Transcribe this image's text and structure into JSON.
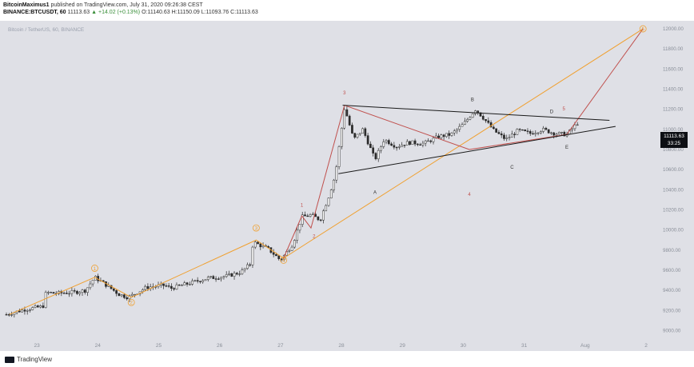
{
  "header": {
    "author": "BitcoinMaximus1",
    "published": "published on TradingView.com, July 31, 2020 09:26:38 CEST",
    "symbol": "BINANCE:BTCUSDT, 60",
    "last": "11113.63",
    "change": "▲ +14.02 (+0.13%)",
    "ohlc": "O:11140.63 H:11150.09 L:11093.76 C:11113.63",
    "watermark": "Bitcoin / TetherUS, 60, BINANCE"
  },
  "price_tag": {
    "price": "11113.63",
    "countdown": "33:25"
  },
  "footer": {
    "brand": "TradingView"
  },
  "colors": {
    "background": "#dfe0e6",
    "candle": "#2b2b2b",
    "wave_orange": "#f0a030",
    "wave_red": "#c0504d",
    "triangle": "#1a1a1a"
  },
  "chart_data": {
    "type": "candlestick",
    "x_ticks": [
      "23",
      "24",
      "25",
      "26",
      "27",
      "28",
      "29",
      "30",
      "31",
      "Aug",
      "2"
    ],
    "y_ticks": [
      9000,
      9200,
      9400,
      9600,
      9800,
      10000,
      10200,
      10400,
      10600,
      10800,
      11000,
      11200,
      11400,
      11600,
      11800,
      12000
    ],
    "y_tick_labels": [
      "9000.00",
      "9200.00",
      "9400.00",
      "9600.00",
      "9800.00",
      "10000.00",
      "10200.00",
      "10400.00",
      "10600.00",
      "10800.00",
      "11000.00",
      "11200.00",
      "11400.00",
      "11600.00",
      "11800.00",
      "12000.00"
    ],
    "ylim": [
      8940,
      12080
    ],
    "xlim": [
      0,
      10.5
    ],
    "close_path": [
      [
        0,
        9160
      ],
      [
        0.3,
        9210
      ],
      [
        0.6,
        9240
      ],
      [
        0.65,
        9380
      ],
      [
        0.8,
        9370
      ],
      [
        1.1,
        9380
      ],
      [
        1.3,
        9400
      ],
      [
        1.45,
        9530
      ],
      [
        1.6,
        9470
      ],
      [
        1.85,
        9360
      ],
      [
        2.0,
        9330
      ],
      [
        2.3,
        9430
      ],
      [
        2.6,
        9450
      ],
      [
        2.7,
        9420
      ],
      [
        3.0,
        9470
      ],
      [
        3.3,
        9520
      ],
      [
        3.6,
        9540
      ],
      [
        3.85,
        9580
      ],
      [
        4.0,
        9660
      ],
      [
        4.05,
        9880
      ],
      [
        4.3,
        9810
      ],
      [
        4.5,
        9700
      ],
      [
        4.7,
        9860
      ],
      [
        4.85,
        10130
      ],
      [
        5.0,
        10150
      ],
      [
        5.15,
        10100
      ],
      [
        5.3,
        10350
      ],
      [
        5.4,
        10550
      ],
      [
        5.55,
        11220
      ],
      [
        5.7,
        10900
      ],
      [
        5.85,
        11000
      ],
      [
        6.05,
        10700
      ],
      [
        6.2,
        10900
      ],
      [
        6.4,
        10830
      ],
      [
        6.6,
        10870
      ],
      [
        6.85,
        10860
      ],
      [
        7.1,
        10930
      ],
      [
        7.3,
        10950
      ],
      [
        7.5,
        11050
      ],
      [
        7.7,
        11200
      ],
      [
        7.85,
        11100
      ],
      [
        8.0,
        10990
      ],
      [
        8.2,
        10900
      ],
      [
        8.4,
        10990
      ],
      [
        8.6,
        10960
      ],
      [
        8.8,
        11000
      ],
      [
        9.0,
        10960
      ],
      [
        9.2,
        10950
      ],
      [
        9.4,
        11080
      ]
    ],
    "triangle": {
      "upper": [
        [
          5.52,
          11240
        ],
        [
          9.9,
          11090
        ]
      ],
      "lower": [
        [
          5.45,
          10560
        ],
        [
          10.0,
          11030
        ]
      ]
    },
    "wave_labels_orange": [
      {
        "label": "1",
        "x": 1.45,
        "y": 9620
      },
      {
        "label": "2",
        "x": 2.05,
        "y": 9280
      },
      {
        "label": "3",
        "x": 4.1,
        "y": 10020
      },
      {
        "label": "4",
        "x": 4.55,
        "y": 9700
      },
      {
        "label": "5",
        "x": 10.45,
        "y": 12000
      }
    ],
    "wave_labels_red": [
      {
        "label": "1",
        "x": 4.85,
        "y": 10230
      },
      {
        "label": "2",
        "x": 5.05,
        "y": 9920
      },
      {
        "label": "3",
        "x": 5.55,
        "y": 11350
      },
      {
        "label": "4",
        "x": 7.6,
        "y": 10340
      },
      {
        "label": "5",
        "x": 9.15,
        "y": 11190
      }
    ],
    "wave_labels_letters": [
      {
        "label": "A",
        "x": 6.05,
        "y": 10360
      },
      {
        "label": "B",
        "x": 7.65,
        "y": 11280
      },
      {
        "label": "C",
        "x": 8.3,
        "y": 10610
      },
      {
        "label": "D",
        "x": 8.95,
        "y": 11160
      },
      {
        "label": "E",
        "x": 9.2,
        "y": 10810
      }
    ],
    "orange_path": [
      [
        0.05,
        9160
      ],
      [
        1.45,
        9530
      ],
      [
        2.05,
        9330
      ],
      [
        4.1,
        9900
      ],
      [
        4.55,
        9720
      ],
      [
        10.45,
        12000
      ]
    ],
    "red_path": [
      [
        4.55,
        9720
      ],
      [
        4.85,
        10140
      ],
      [
        5.0,
        10020
      ],
      [
        5.55,
        11240
      ],
      [
        7.6,
        10800
      ],
      [
        9.2,
        10950
      ],
      [
        10.45,
        12000
      ]
    ]
  }
}
